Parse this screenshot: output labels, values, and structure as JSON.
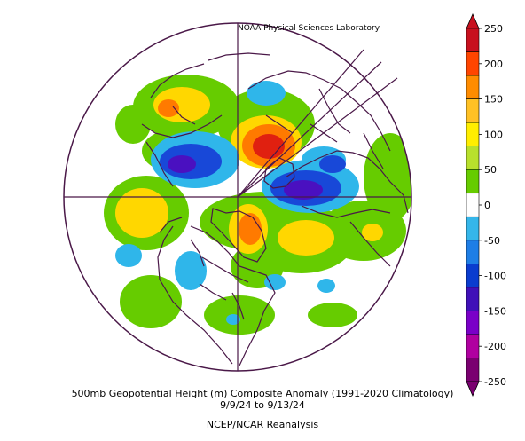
{
  "header": {
    "credit": "NOAA Physical Sciences Laboratory"
  },
  "caption": {
    "line1": "500mb Geopotential Height (m) Composite Anomaly (1991-2020 Climatology)",
    "line2": "9/9/24   to 9/13/24",
    "line3": "NCEP/NCAR Reanalysis"
  },
  "colorbar": {
    "ticks": [
      "250",
      "200",
      "150",
      "100",
      "50",
      "0",
      "-50",
      "-100",
      "-150",
      "-200",
      "-250"
    ],
    "colors": [
      "#c8101e",
      "#ff4500",
      "#ff8c00",
      "#ffc125",
      "#ffee00",
      "#b8e02c",
      "#66cc00",
      "#ffffff",
      "#35b6ea",
      "#1e7ee6",
      "#0a3ccf",
      "#4010b8",
      "#7a00c8",
      "#b000a0",
      "#7a0070"
    ]
  },
  "colors": {
    "coast": "#4a1848",
    "strong_pos": "#e02010",
    "pos_orange": "#ff7a00",
    "pos_yellow": "#ffd700",
    "pos_green": "#66cc00",
    "neg_cyan": "#2fb6ea",
    "neg_blue": "#1848d8",
    "neg_purple": "#4a10c0"
  }
}
